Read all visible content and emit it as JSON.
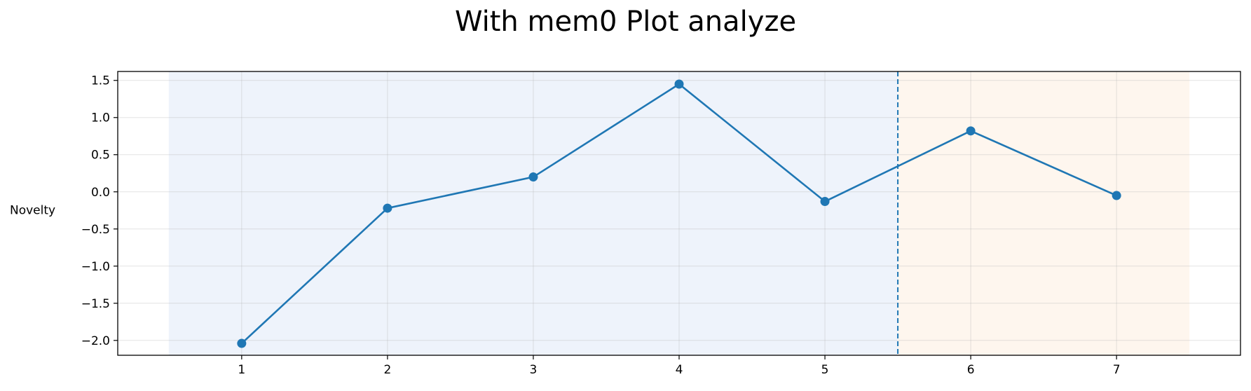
{
  "chart_data": {
    "type": "line",
    "title": "With mem0 Plot analyze",
    "xlabel": "",
    "ylabel": "Novelty",
    "x": [
      1,
      2,
      3,
      4,
      5,
      6,
      7
    ],
    "series": [
      {
        "values": [
          -2.04,
          -0.22,
          0.2,
          1.45,
          -0.13,
          0.82,
          -0.05
        ],
        "color": "#1f77b4"
      }
    ],
    "xlim": [
      0.15,
      7.85
    ],
    "ylim": [
      -2.2,
      1.62
    ],
    "xticks": [
      "1",
      "2",
      "3",
      "4",
      "5",
      "6",
      "7"
    ],
    "yticks": [
      "1.5",
      "1.0",
      "0.5",
      "0.0",
      "−0.5",
      "−1.0",
      "−1.5",
      "−2.0"
    ],
    "ytick_values": [
      1.5,
      1.0,
      0.5,
      0.0,
      -0.5,
      -1.0,
      -1.5,
      -2.0
    ],
    "grid": true,
    "legend": "none",
    "spans": [
      {
        "x_start": 0.5,
        "x_end": 5.5,
        "color": "#eef3fb"
      },
      {
        "x_start": 5.5,
        "x_end": 7.5,
        "color": "#fef6ee"
      }
    ],
    "vline": {
      "x": 5.5,
      "style": "dashed",
      "color": "#1f77b4"
    }
  }
}
